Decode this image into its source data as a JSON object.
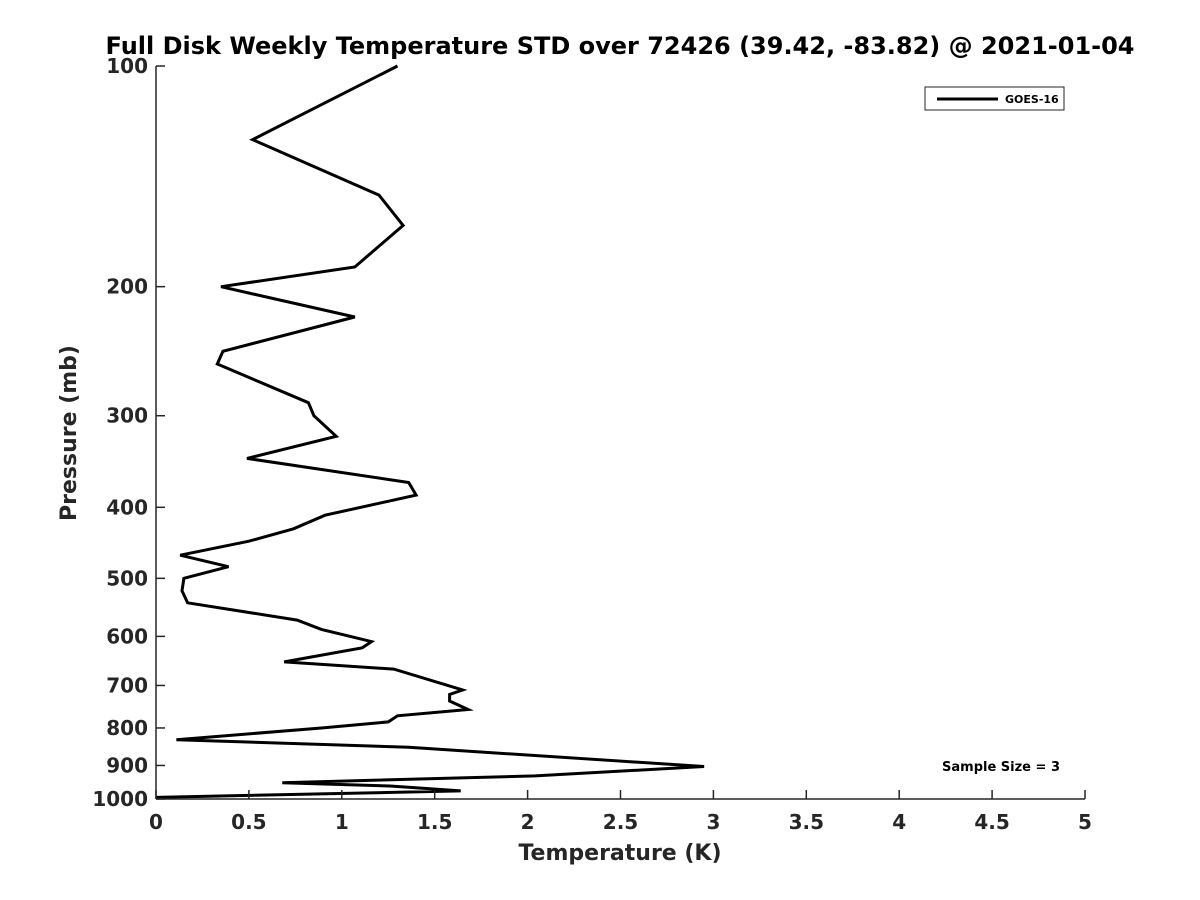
{
  "chart_data": {
    "type": "line",
    "title": "Full Disk Weekly Temperature STD over 72426 (39.42, -83.82) @ 2021-01-04",
    "xlabel": "Temperature (K)",
    "ylabel": "Pressure (mb)",
    "xlim": [
      0,
      5
    ],
    "ylim": [
      1000,
      100
    ],
    "yscale": "log",
    "x_ticks": [
      "0",
      "0.5",
      "1",
      "1.5",
      "2",
      "2.5",
      "3",
      "3.5",
      "4",
      "4.5",
      "5"
    ],
    "y_ticks": [
      "100",
      "200",
      "300",
      "400",
      "500",
      "600",
      "700",
      "800",
      "900",
      "1000"
    ],
    "grid": false,
    "legend_position": "top-right",
    "annotation": "Sample Size = 3",
    "series": [
      {
        "name": "GOES-16",
        "color": "#000000",
        "points": [
          [
            1.3,
            100
          ],
          [
            0.52,
            126
          ],
          [
            1.2,
            150
          ],
          [
            1.33,
            165
          ],
          [
            1.07,
            188
          ],
          [
            0.35,
            200
          ],
          [
            1.07,
            220
          ],
          [
            0.36,
            245
          ],
          [
            0.33,
            255
          ],
          [
            0.82,
            288
          ],
          [
            0.85,
            300
          ],
          [
            0.97,
            320
          ],
          [
            0.49,
            343
          ],
          [
            1.36,
            370
          ],
          [
            1.4,
            385
          ],
          [
            0.91,
            410
          ],
          [
            0.74,
            428
          ],
          [
            0.5,
            445
          ],
          [
            0.13,
            465
          ],
          [
            0.39,
            482
          ],
          [
            0.15,
            500
          ],
          [
            0.14,
            520
          ],
          [
            0.17,
            540
          ],
          [
            0.76,
            570
          ],
          [
            0.89,
            587
          ],
          [
            1.16,
            610
          ],
          [
            1.11,
            622
          ],
          [
            0.69,
            650
          ],
          [
            1.28,
            665
          ],
          [
            1.65,
            710
          ],
          [
            1.58,
            720
          ],
          [
            1.58,
            735
          ],
          [
            1.68,
            755
          ],
          [
            1.3,
            770
          ],
          [
            1.25,
            785
          ],
          [
            0.89,
            800
          ],
          [
            0.11,
            830
          ],
          [
            1.36,
            850
          ],
          [
            2.95,
            903
          ],
          [
            2.04,
            930
          ],
          [
            0.68,
            950
          ],
          [
            1.26,
            960
          ],
          [
            1.64,
            975
          ],
          [
            0.0,
            995
          ]
        ]
      }
    ]
  }
}
